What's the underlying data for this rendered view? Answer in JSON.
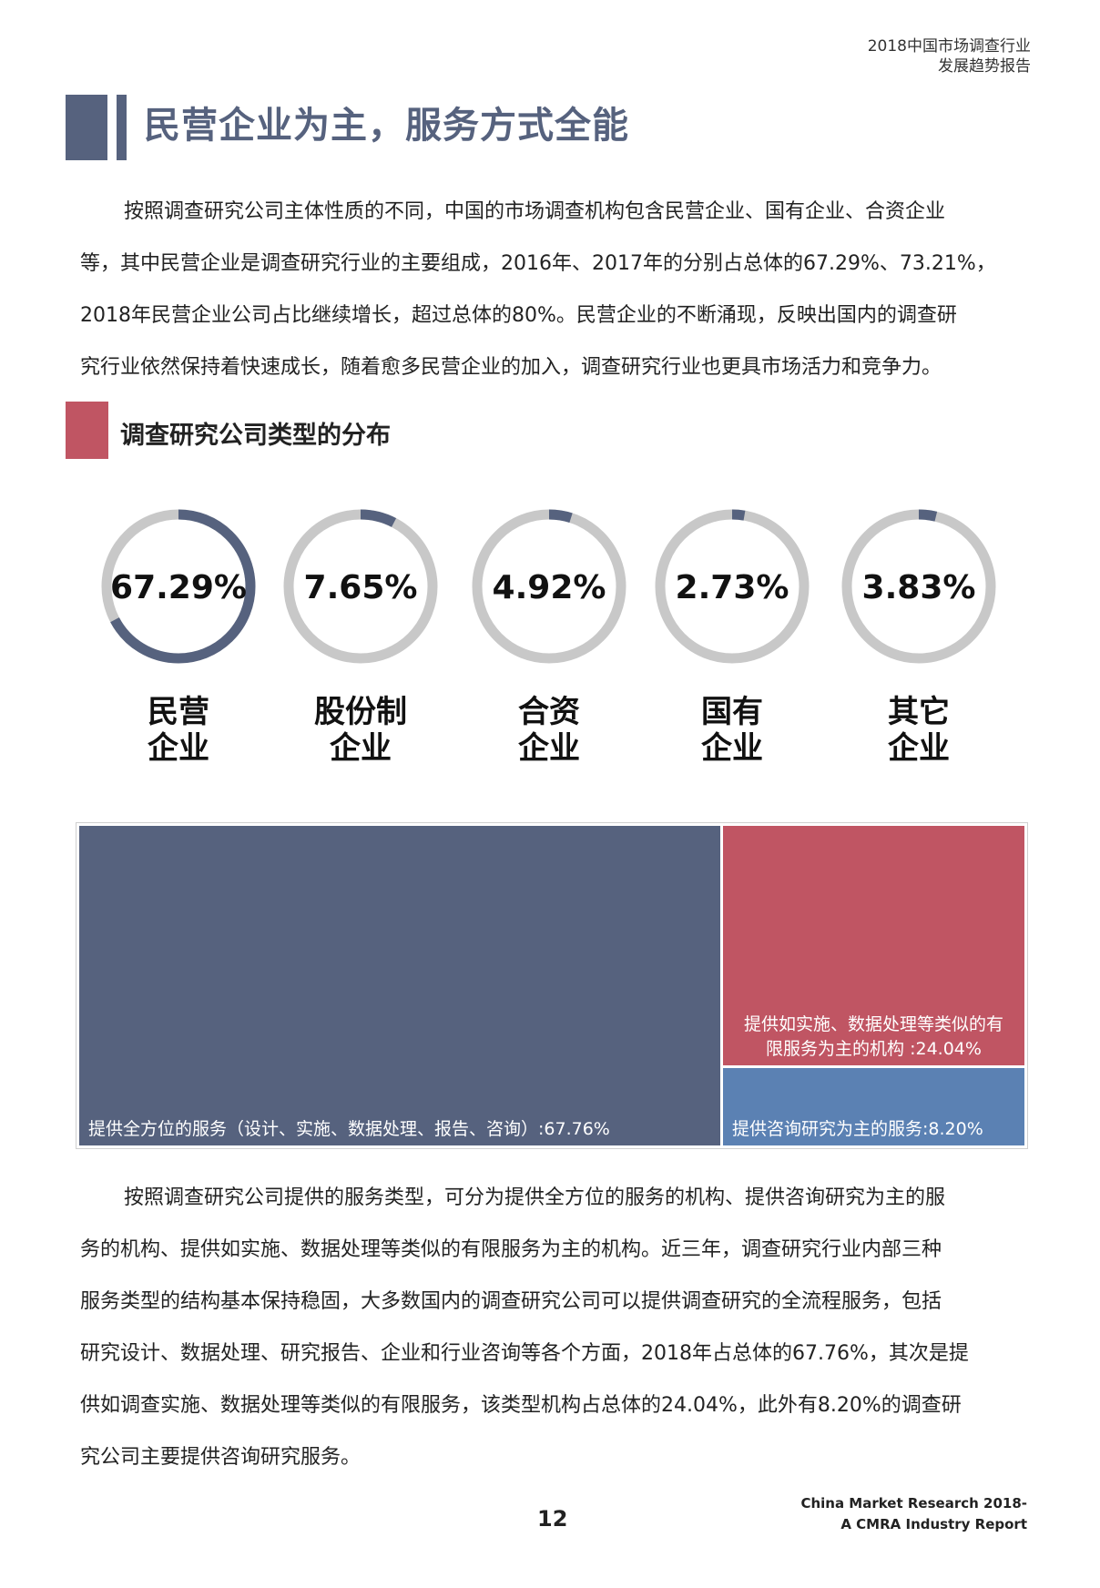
{
  "header": {
    "line1": "2018中国市场调查行业",
    "line2": "发展趋势报告"
  },
  "title": "民营企业为主，服务方式全能",
  "paragraph1": [
    "按照调查研究公司主体性质的不同，中国的市场调查机构包含民营企业、国有企业、合资企业",
    "等，其中民营企业是调查研究行业的主要组成，2016年、2017年的分别占总体的67.29%、73.21%，",
    "2018年民营企业公司占比继续增长，超过总体的80%。民营企业的不断涌现，反映出国内的调查研",
    "究行业依然保持着快速成长，随着愈多民营企业的加入，调查研究行业也更具市场活力和竞争力。"
  ],
  "subheading": "调查研究公司类型的分布",
  "colors": {
    "navy": "#56627e",
    "red": "#c05563",
    "blue": "#5b81b3",
    "ring_gray": "#c8c8c8"
  },
  "chart_data": [
    {
      "type": "pie",
      "categories": [
        "民营企业",
        "股份制企业",
        "合资企业",
        "国有企业",
        "其它企业"
      ],
      "values": [
        67.29,
        7.65,
        4.92,
        2.73,
        3.83
      ],
      "value_labels": [
        "67.29%",
        "7.65%",
        "4.92%",
        "2.73%",
        "3.83%"
      ],
      "label_lines": [
        [
          "民营",
          "企业"
        ],
        [
          "股份制",
          "企业"
        ],
        [
          "合资",
          "企业"
        ],
        [
          "国有",
          "企业"
        ],
        [
          "其它",
          "企业"
        ]
      ],
      "title": "",
      "legend": "none"
    },
    {
      "type": "treemap",
      "categories": [
        "提供全方位的服务（设计、实施、数据处理、报告、咨询）",
        "提供如实施、数据处理等类似的有限服务为主的机构",
        "提供咨询研究为主的服务"
      ],
      "values": [
        67.76,
        24.04,
        8.2
      ],
      "labels": [
        [
          "提供全方位的服务（设计、实施、数据处理、报告、咨询）:67.76%"
        ],
        [
          "提供如实施、数据处理等类似的有",
          "限服务为主的机构 :24.04%"
        ],
        [
          "提供咨询研究为主的服务:8.20%"
        ]
      ],
      "colors": [
        "#56627e",
        "#c05563",
        "#5b81b3"
      ],
      "title": ""
    }
  ],
  "paragraph2": [
    "按照调查研究公司提供的服务类型，可分为提供全方位的服务的机构、提供咨询研究为主的服",
    "务的机构、提供如实施、数据处理等类似的有限服务为主的机构。近三年，调查研究行业内部三种",
    "服务类型的结构基本保持稳固，大多数国内的调查研究公司可以提供调查研究的全流程服务，包括",
    "研究设计、数据处理、研究报告、企业和行业咨询等各个方面，2018年占总体的67.76%，其次是提",
    "供如调查实施、数据处理等类似的有限服务，该类型机构占总体的24.04%，此外有8.20%的调查研",
    "究公司主要提供咨询研究服务。"
  ],
  "page_number": "12",
  "footer": {
    "line1": "China Market Research 2018-",
    "line2": "A CMRA Industry Report"
  }
}
